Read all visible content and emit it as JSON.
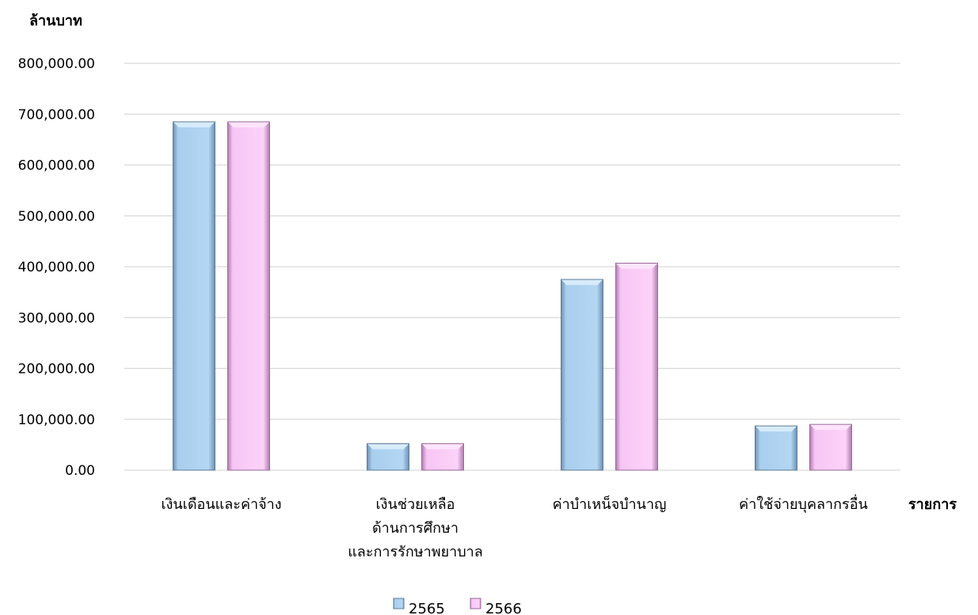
{
  "chart_data": {
    "type": "bar",
    "ylabel": "ล้านบาท",
    "xlabel": "รายการ",
    "ylim": [
      0,
      800000
    ],
    "ytick_values": [
      0,
      100000,
      200000,
      300000,
      400000,
      500000,
      600000,
      700000,
      800000
    ],
    "ytick_labels": [
      "0.00",
      "100,000.00",
      "200,000.00",
      "300,000.00",
      "400,000.00",
      "500,000.00",
      "600,000.00",
      "700,000.00",
      "800,000.00"
    ],
    "categories": [
      [
        "เงินเดือนและค่าจ้าง"
      ],
      [
        "เงินช่วยเหลือ",
        "ด้านการศึกษา",
        "และการรักษาพยาบาล"
      ],
      [
        "ค่าบำเหน็จบำนาญ"
      ],
      [
        "ค่าใช้จ่ายบุคลากรอื่น"
      ]
    ],
    "series": [
      {
        "name": "2565",
        "color": "#a9cfee",
        "values": [
          685000,
          52000,
          375000,
          87000
        ]
      },
      {
        "name": "2566",
        "color": "#f9c9f6",
        "values": [
          685000,
          52000,
          407000,
          90000
        ]
      }
    ],
    "grid": true,
    "legend_position": "bottom"
  }
}
